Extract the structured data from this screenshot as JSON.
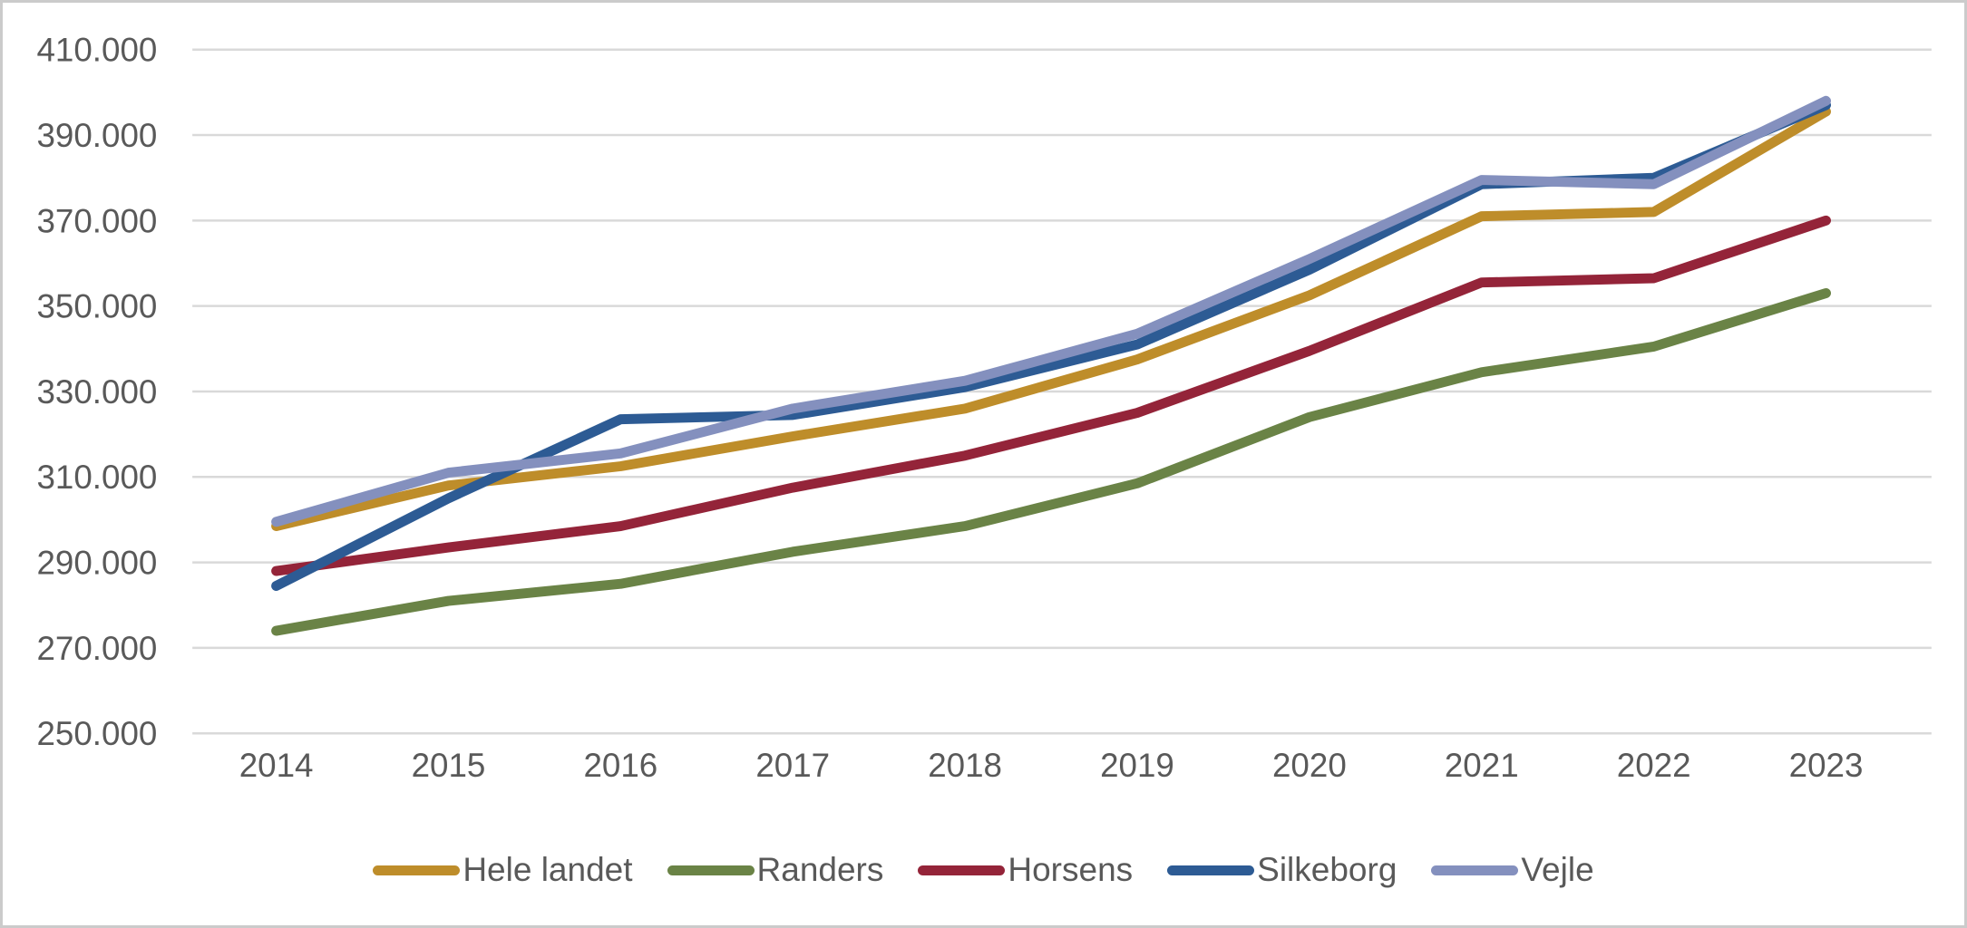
{
  "window": {
    "background_color": "#ffffff",
    "border_color": "#cbcbcb"
  },
  "axis_colors": {
    "gridline": "#d9d9d9",
    "tick_text": "#595959"
  },
  "chart_data": {
    "type": "line",
    "title": "",
    "xlabel": "",
    "ylabel": "",
    "grid": true,
    "legend_position": "bottom",
    "ylim": [
      250000,
      410000
    ],
    "ytick_step": 20000,
    "ytick_labels_top_to_bottom": [
      "410.000",
      "390.000",
      "370.000",
      "350.000",
      "330.000",
      "310.000",
      "290.000",
      "270.000",
      "250.000"
    ],
    "categories": [
      "2014",
      "2015",
      "2016",
      "2017",
      "2018",
      "2019",
      "2020",
      "2021",
      "2022",
      "2023"
    ],
    "series": [
      {
        "name": "Hele landet",
        "color": "#BE8D2A",
        "values": [
          298500,
          308000,
          312500,
          319500,
          326000,
          337500,
          352500,
          371000,
          372000,
          395500
        ]
      },
      {
        "name": "Randers",
        "color": "#6A8346",
        "values": [
          274000,
          281000,
          285000,
          292500,
          298500,
          308500,
          324000,
          334500,
          340500,
          353000
        ]
      },
      {
        "name": "Horsens",
        "color": "#942439",
        "values": [
          288000,
          293500,
          298500,
          307500,
          315000,
          325000,
          339500,
          355500,
          356500,
          370000
        ]
      },
      {
        "name": "Silkeborg",
        "color": "#2D5B94",
        "values": [
          284500,
          305000,
          323500,
          324500,
          331000,
          341000,
          358500,
          378500,
          380000,
          397000
        ]
      },
      {
        "name": "Vejle",
        "color": "#8490BE",
        "values": [
          299500,
          311000,
          315500,
          326000,
          332500,
          343500,
          361000,
          379500,
          378500,
          398000
        ]
      }
    ]
  }
}
